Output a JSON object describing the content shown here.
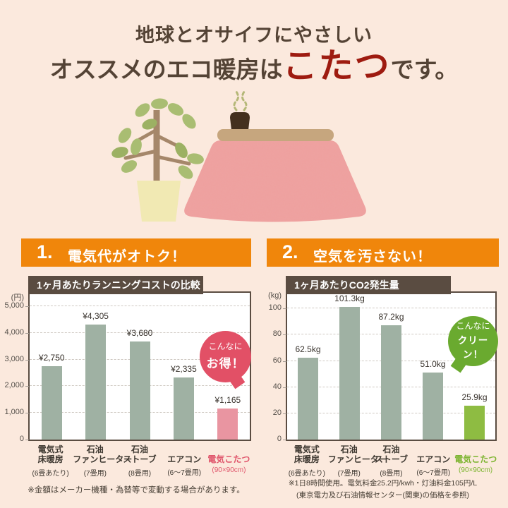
{
  "colors": {
    "background": "#fbe9dd",
    "accent_red": "#9e1b10",
    "section_orange": "#f0860b",
    "chart_brown": "#5a4c41",
    "bar_default": "#9fb1a3",
    "bar_pink": "#e995a1",
    "bar_green": "#8ebc42",
    "bubble_pink": "#e25066",
    "bubble_green": "#6aaa2f"
  },
  "header": {
    "line1": "地球とオサイフにやさしい",
    "line2_pre": "オススメのエコ暖房は",
    "line2_accent": "こたつ",
    "line2_post": "です。"
  },
  "illustration": {
    "plant": "potted-plant",
    "kotatsu": "kotatsu-table-with-pink-blanket",
    "teapot": "teapot-with-steam"
  },
  "sections": [
    {
      "number": "1.",
      "title": "電気代がオトク！"
    },
    {
      "number": "2.",
      "title": "空気を汚さない！"
    }
  ],
  "chart_data": [
    {
      "type": "bar",
      "title": "1ヶ月あたりランニングコストの比較",
      "unit": "(円)",
      "ylim": [
        0,
        5500
      ],
      "grid": "dashed-horizontal",
      "legend": null,
      "yticks": [
        0,
        1000,
        2000,
        3000,
        4000,
        5000
      ],
      "ytick_labels": [
        "0",
        "1,000",
        "2,000",
        "3,000",
        "4,000",
        "5,000"
      ],
      "categories": [
        {
          "lines": [
            "電気式",
            "床暖房"
          ],
          "sub": "(6畳あたり)"
        },
        {
          "lines": [
            "石油",
            "ファンヒーター"
          ],
          "sub": "(7畳用)"
        },
        {
          "lines": [
            "石油",
            "ストーブ"
          ],
          "sub": "(8畳用)"
        },
        {
          "lines": [
            "エアコン"
          ],
          "sub": "(6〜7畳用)"
        },
        {
          "lines": [
            "電気こたつ"
          ],
          "sub": "(90×90cm)",
          "color": "#e0556b"
        }
      ],
      "values": [
        2750,
        4305,
        3680,
        2335,
        1165
      ],
      "value_labels": [
        "¥2,750",
        "¥4,305",
        "¥3,680",
        "¥2,335",
        "¥1,165"
      ],
      "bar_colors": [
        "#9fb1a3",
        "#9fb1a3",
        "#9fb1a3",
        "#9fb1a3",
        "#e995a1"
      ],
      "bubble": {
        "line1": "こんなに",
        "line2": "お得！",
        "color": "#e25066"
      }
    },
    {
      "type": "bar",
      "title": "1ヶ月あたりCO2発生量",
      "unit": "(kg)",
      "ylim": [
        0,
        112
      ],
      "grid": "dashed-horizontal",
      "legend": null,
      "yticks": [
        0,
        20,
        40,
        60,
        80,
        100
      ],
      "ytick_labels": [
        "0",
        "20",
        "40",
        "60",
        "80",
        "100"
      ],
      "categories": [
        {
          "lines": [
            "電気式",
            "床暖房"
          ],
          "sub": "(6畳あたり)"
        },
        {
          "lines": [
            "石油",
            "ファンヒーター"
          ],
          "sub": "(7畳用)"
        },
        {
          "lines": [
            "石油",
            "ストーブ"
          ],
          "sub": "(8畳用)"
        },
        {
          "lines": [
            "エアコン"
          ],
          "sub": "(6〜7畳用)"
        },
        {
          "lines": [
            "電気こたつ"
          ],
          "sub": "(90×90cm)",
          "color": "#7cb42f"
        }
      ],
      "values": [
        62.5,
        101.3,
        87.2,
        51.0,
        25.9
      ],
      "value_labels": [
        "62.5kg",
        "101.3kg",
        "87.2kg",
        "51.0kg",
        "25.9kg"
      ],
      "bar_colors": [
        "#9fb1a3",
        "#9fb1a3",
        "#9fb1a3",
        "#9fb1a3",
        "#8ebc42"
      ],
      "bubble": {
        "line1": "こんなに",
        "line2": "クリーン！",
        "color": "#6aaa2f"
      }
    }
  ],
  "footnotes": {
    "left": "※金額はメーカー機種・為替等で変動する場合があります。",
    "right_line1": "※1日8時間使用。電気料金25.2円/kwh・灯油料金105円/L",
    "right_line2": "(東京電力及び石油情報センター(関東)の価格を参照)"
  }
}
